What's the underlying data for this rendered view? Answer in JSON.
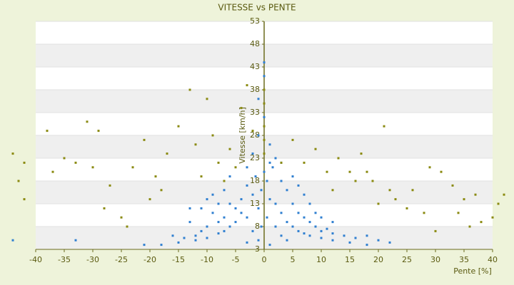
{
  "chart_data": {
    "type": "scatter",
    "title": "VITESSE vs PENTE",
    "x_label": "Pente [%]",
    "y_label": "Vitesse [km/h]",
    "xlim": [
      -40,
      40
    ],
    "xticks": [
      -40,
      -35,
      -30,
      -25,
      -20,
      -15,
      -10,
      -5,
      0,
      5,
      10,
      15,
      20,
      25,
      30,
      35,
      40
    ],
    "ylim": [
      3,
      53
    ],
    "yticks": [
      3,
      8,
      13,
      18,
      23,
      28,
      33,
      38,
      43,
      48,
      53
    ],
    "grid": true,
    "series": [
      {
        "color": "#2f7fd0",
        "x": [
          0,
          0.5,
          -0.5,
          1,
          -1,
          2,
          -2,
          3,
          -3,
          4,
          5,
          6,
          7,
          8,
          10,
          12,
          15,
          18,
          -4,
          -5,
          -6,
          -7,
          -8,
          -10,
          -12,
          -15,
          -18,
          -21,
          0,
          0,
          -1,
          0,
          -1,
          1,
          2,
          -2,
          1.5,
          -1.5,
          3,
          -3,
          4,
          -4,
          5,
          -5,
          6,
          -6,
          7,
          8,
          9,
          10,
          11,
          12,
          14,
          16,
          -7,
          -8,
          -9,
          -10,
          -11,
          -12,
          -13,
          -14,
          2,
          3,
          4,
          1,
          -1,
          -2,
          -3,
          0.5,
          -0.5,
          1,
          -3,
          3,
          5,
          6,
          7,
          8,
          -6,
          -7,
          9,
          10,
          12,
          -8,
          -9,
          -10,
          -11,
          -13,
          -44,
          -33,
          20,
          18,
          22,
          -16
        ],
        "values": [
          20,
          18,
          16,
          14,
          12,
          13,
          15,
          11,
          10,
          9,
          8,
          7,
          6.5,
          6,
          5.5,
          5,
          4.5,
          4,
          11,
          9,
          8,
          7,
          6.5,
          5.5,
          5,
          4.5,
          4,
          4,
          44,
          41,
          36,
          32,
          28,
          26,
          23,
          24,
          21,
          19,
          18,
          17,
          16,
          14,
          13,
          12,
          11,
          13,
          10,
          9,
          8,
          7,
          7.5,
          6.5,
          6,
          5.5,
          10,
          9,
          11,
          8,
          7,
          6,
          9,
          5.5,
          8,
          6,
          5,
          4,
          5,
          7,
          4.5,
          10,
          8,
          22,
          21,
          22,
          19,
          17,
          15,
          13,
          19,
          16,
          11,
          10,
          9,
          13,
          15,
          14,
          12,
          12,
          5,
          5,
          5,
          6,
          4.5,
          6
        ]
      },
      {
        "color": "#8a8a10",
        "x": [
          -44,
          -42,
          -43,
          -42,
          -38,
          -37,
          -35,
          -33,
          -31,
          -30,
          -29,
          -27,
          -25,
          -23,
          -21,
          -19,
          -18,
          -17,
          -15,
          -13,
          -12,
          -11,
          -10,
          -9,
          -8,
          -7,
          -6,
          -5,
          -4,
          -3,
          -2,
          0,
          0,
          0,
          0,
          0,
          3,
          5,
          7,
          9,
          11,
          12,
          13,
          15,
          16,
          17,
          18,
          19,
          21,
          22,
          23,
          25,
          26,
          28,
          29,
          31,
          33,
          34,
          35,
          36,
          37,
          38,
          40,
          41,
          42,
          -28,
          -24,
          20,
          30,
          -20
        ],
        "values": [
          24,
          22,
          18,
          14,
          29,
          20,
          23,
          22,
          31,
          21,
          29,
          17,
          10,
          21,
          27,
          19,
          16,
          24,
          30,
          38,
          26,
          19,
          36,
          28,
          22,
          18,
          25,
          21,
          34,
          39,
          29,
          38,
          35,
          30,
          27,
          24,
          22,
          27,
          22,
          25,
          20,
          16,
          23,
          20,
          18,
          24,
          20,
          18,
          30,
          16,
          14,
          12,
          16,
          11,
          21,
          20,
          17,
          11,
          14,
          8,
          15,
          9,
          10,
          13,
          15,
          12,
          8,
          13,
          7,
          14
        ]
      }
    ]
  }
}
